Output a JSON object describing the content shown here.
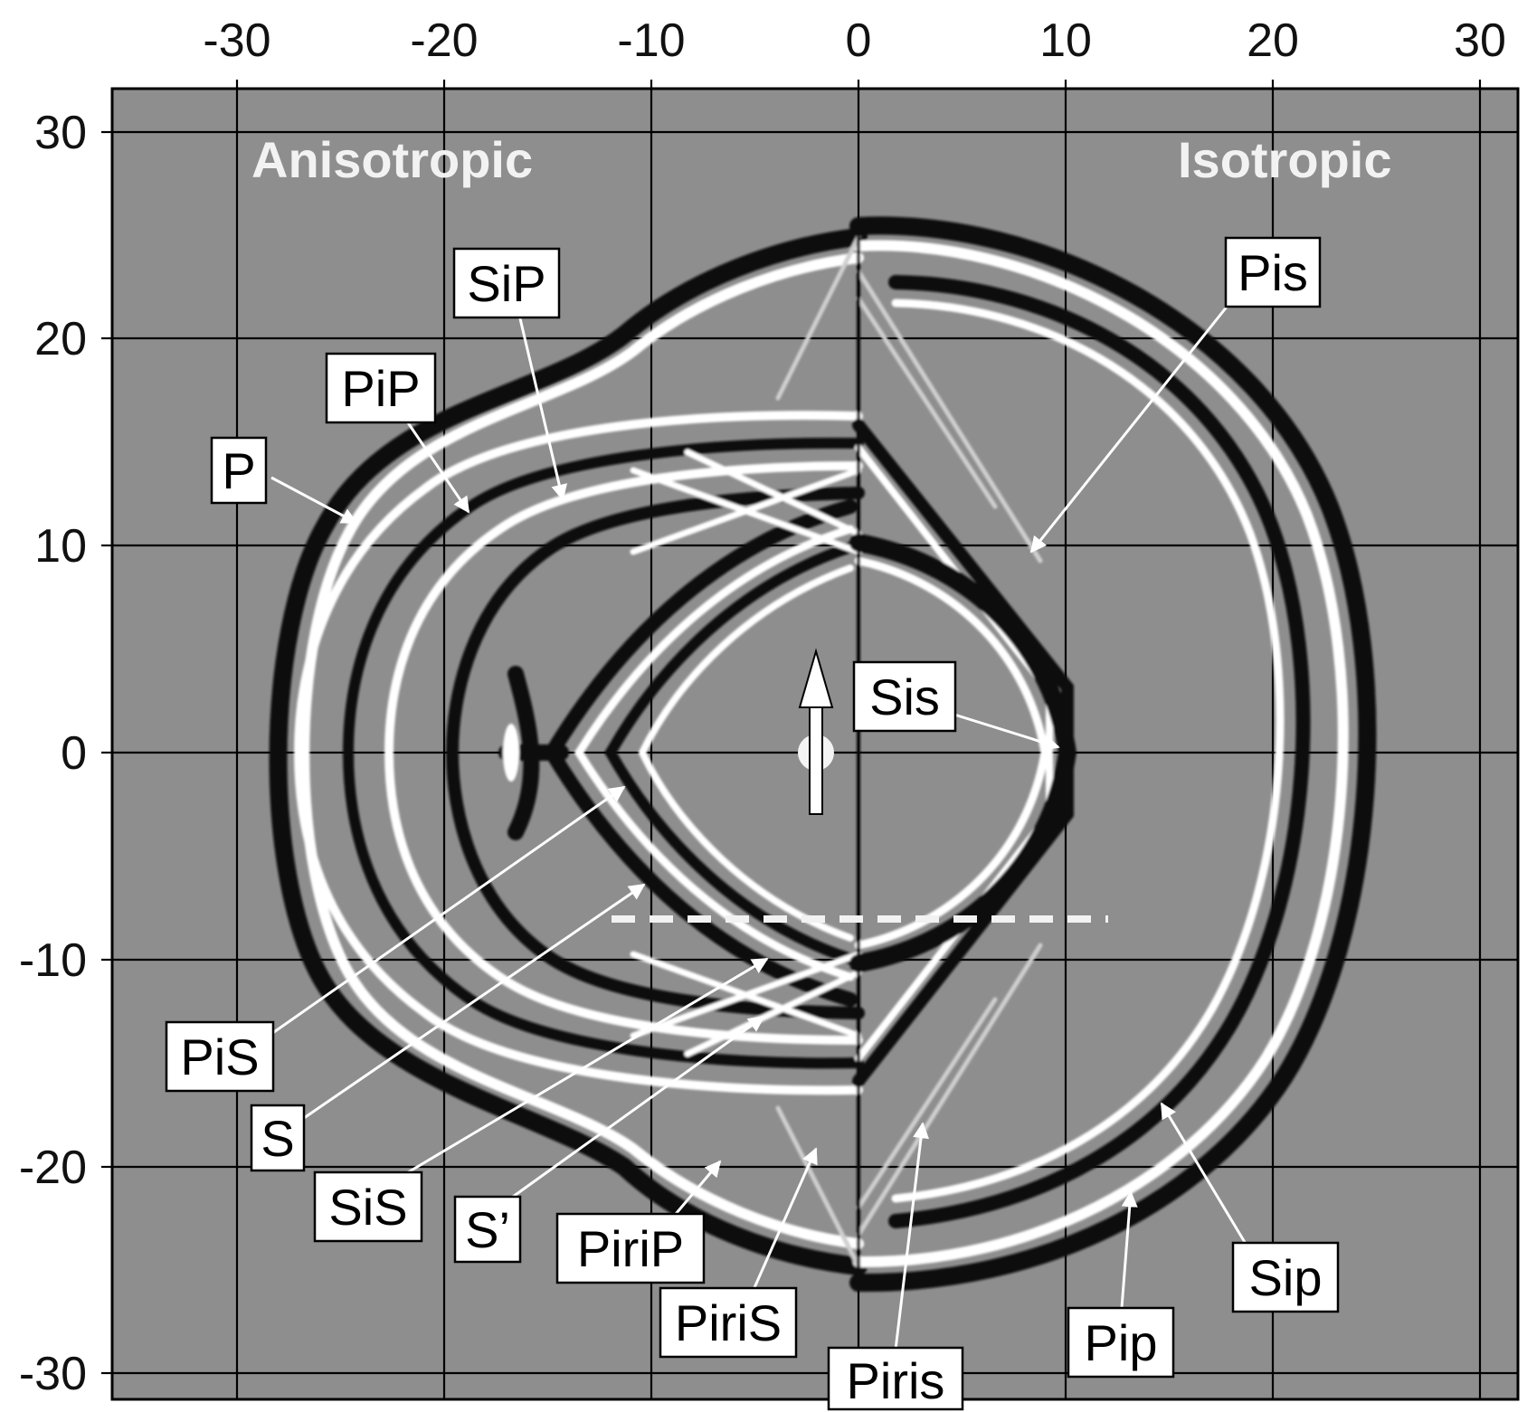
{
  "axes": {
    "x_ticks": [
      "-30",
      "-20",
      "-10",
      "0",
      "10",
      "20",
      "30"
    ],
    "y_ticks": [
      "30",
      "20",
      "10",
      "0",
      "-10",
      "-20",
      "-30"
    ],
    "xlim": [
      -30,
      30
    ],
    "ylim": [
      -30,
      30
    ],
    "grid": true
  },
  "regions": {
    "left": "Anisotropic",
    "right": "Isotropic"
  },
  "labels": {
    "SiP": "SiP",
    "PiP": "PiP",
    "P": "P",
    "Pis": "Pis",
    "Sis": "Sis",
    "PiS": "PiS",
    "S": "S",
    "SiS": "SiS",
    "S_prime": "S’",
    "PiriP": "PiriP",
    "PiriS": "PiriS",
    "Piris": "Piris",
    "Pip": "Pip",
    "Sip": "Sip"
  },
  "colors": {
    "background": "#8e8e8e",
    "wave_dark": "#111111",
    "wave_light": "#ffffff",
    "grid": "#000000"
  }
}
